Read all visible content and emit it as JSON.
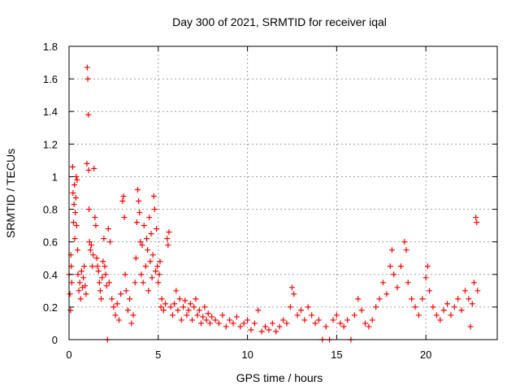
{
  "chart_data": {
    "type": "scatter",
    "title": "Day 300 of 2021, SRMTID for receiver iqal",
    "xlabel": "GPS time / hours",
    "ylabel": "SRMTID / TECUs",
    "xlim": [
      0,
      24
    ],
    "ylim": [
      0,
      1.8
    ],
    "xticks": [
      0,
      5,
      10,
      15,
      20
    ],
    "yticks": [
      0,
      0.2,
      0.4,
      0.6,
      0.8,
      1,
      1.2,
      1.4,
      1.6,
      1.8
    ],
    "xtick_labels": [
      "0",
      "5",
      "10",
      "15",
      "20"
    ],
    "ytick_labels": [
      "0",
      "0.2",
      "0.4",
      "0.6",
      "0.8",
      "1",
      "1.2",
      "1.4",
      "1.6",
      "1.8"
    ],
    "grid": true,
    "marker": "plus",
    "color": "#ff0000",
    "series": [
      {
        "name": "SRMTID",
        "points": [
          [
            0.0,
            0.4
          ],
          [
            0.05,
            0.28
          ],
          [
            0.08,
            0.18
          ],
          [
            0.1,
            0.52
          ],
          [
            0.12,
            0.45
          ],
          [
            0.15,
            0.35
          ],
          [
            0.2,
            1.06
          ],
          [
            0.22,
            0.9
          ],
          [
            0.25,
            0.72
          ],
          [
            0.28,
            0.83
          ],
          [
            0.3,
            0.95
          ],
          [
            0.32,
            0.62
          ],
          [
            0.35,
            0.78
          ],
          [
            0.38,
            0.87
          ],
          [
            0.4,
            1.0
          ],
          [
            0.42,
            0.7
          ],
          [
            0.45,
            0.98
          ],
          [
            0.48,
            0.55
          ],
          [
            0.5,
            0.4
          ],
          [
            0.55,
            0.3
          ],
          [
            0.6,
            0.35
          ],
          [
            0.65,
            0.25
          ],
          [
            0.7,
            0.42
          ],
          [
            0.75,
            0.32
          ],
          [
            0.8,
            0.38
          ],
          [
            0.85,
            0.45
          ],
          [
            0.9,
            0.33
          ],
          [
            0.95,
            0.28
          ],
          [
            1.0,
            1.08
          ],
          [
            1.02,
            1.67
          ],
          [
            1.05,
            1.6
          ],
          [
            1.08,
            1.38
          ],
          [
            1.1,
            1.04
          ],
          [
            1.12,
            0.8
          ],
          [
            1.15,
            0.6
          ],
          [
            1.2,
            0.55
          ],
          [
            1.25,
            0.58
          ],
          [
            1.3,
            0.45
          ],
          [
            1.35,
            0.52
          ],
          [
            1.4,
            1.05
          ],
          [
            1.45,
            0.75
          ],
          [
            1.5,
            0.7
          ],
          [
            1.55,
            0.5
          ],
          [
            1.6,
            0.45
          ],
          [
            1.65,
            0.42
          ],
          [
            1.7,
            0.35
          ],
          [
            1.75,
            0.3
          ],
          [
            1.8,
            0.25
          ],
          [
            1.85,
            0.38
          ],
          [
            1.9,
            0.48
          ],
          [
            1.95,
            0.62
          ],
          [
            2.0,
            0.45
          ],
          [
            2.05,
            0.4
          ],
          [
            2.1,
            0.33
          ],
          [
            2.15,
            0.0
          ],
          [
            2.2,
            0.68
          ],
          [
            2.25,
            0.35
          ],
          [
            2.3,
            0.6
          ],
          [
            2.4,
            0.25
          ],
          [
            2.5,
            0.2
          ],
          [
            2.6,
            0.15
          ],
          [
            2.7,
            0.22
          ],
          [
            2.8,
            0.12
          ],
          [
            2.9,
            0.28
          ],
          [
            3.0,
            0.85
          ],
          [
            3.05,
            0.88
          ],
          [
            3.1,
            0.75
          ],
          [
            3.15,
            0.4
          ],
          [
            3.2,
            0.3
          ],
          [
            3.3,
            0.18
          ],
          [
            3.4,
            0.25
          ],
          [
            3.5,
            0.1
          ],
          [
            3.6,
            0.15
          ],
          [
            3.7,
            0.35
          ],
          [
            3.75,
            0.5
          ],
          [
            3.8,
            0.72
          ],
          [
            3.85,
            0.92
          ],
          [
            3.9,
            0.85
          ],
          [
            3.95,
            0.78
          ],
          [
            4.0,
            0.6
          ],
          [
            4.05,
            0.4
          ],
          [
            4.1,
            0.58
          ],
          [
            4.15,
            0.35
          ],
          [
            4.2,
            0.7
          ],
          [
            4.3,
            0.45
          ],
          [
            4.35,
            0.62
          ],
          [
            4.4,
            0.55
          ],
          [
            4.45,
            0.3
          ],
          [
            4.5,
            0.75
          ],
          [
            4.55,
            0.48
          ],
          [
            4.6,
            0.65
          ],
          [
            4.65,
            0.38
          ],
          [
            4.7,
            0.52
          ],
          [
            4.75,
            0.88
          ],
          [
            4.8,
            0.8
          ],
          [
            4.85,
            0.42
          ],
          [
            4.9,
            0.68
          ],
          [
            4.95,
            0.45
          ],
          [
            5.0,
            0.35
          ],
          [
            5.05,
            0.4
          ],
          [
            5.1,
            0.48
          ],
          [
            5.15,
            0.2
          ],
          [
            5.2,
            0.25
          ],
          [
            5.3,
            0.18
          ],
          [
            5.4,
            0.22
          ],
          [
            5.5,
            0.62
          ],
          [
            5.55,
            0.58
          ],
          [
            5.6,
            0.66
          ],
          [
            5.7,
            0.2
          ],
          [
            5.8,
            0.15
          ],
          [
            5.9,
            0.22
          ],
          [
            6.0,
            0.3
          ],
          [
            6.1,
            0.18
          ],
          [
            6.2,
            0.25
          ],
          [
            6.3,
            0.12
          ],
          [
            6.4,
            0.2
          ],
          [
            6.5,
            0.24
          ],
          [
            6.6,
            0.15
          ],
          [
            6.7,
            0.18
          ],
          [
            6.8,
            0.22
          ],
          [
            6.9,
            0.12
          ],
          [
            7.0,
            0.2
          ],
          [
            7.1,
            0.25
          ],
          [
            7.2,
            0.15
          ],
          [
            7.3,
            0.18
          ],
          [
            7.4,
            0.1
          ],
          [
            7.5,
            0.14
          ],
          [
            7.6,
            0.2
          ],
          [
            7.7,
            0.12
          ],
          [
            7.8,
            0.16
          ],
          [
            7.9,
            0.1
          ],
          [
            8.0,
            0.14
          ],
          [
            8.2,
            0.12
          ],
          [
            8.4,
            0.1
          ],
          [
            8.6,
            0.15
          ],
          [
            8.8,
            0.08
          ],
          [
            9.0,
            0.12
          ],
          [
            9.2,
            0.1
          ],
          [
            9.4,
            0.14
          ],
          [
            9.6,
            0.08
          ],
          [
            9.8,
            0.1
          ],
          [
            10.0,
            0.12
          ],
          [
            10.2,
            0.06
          ],
          [
            10.4,
            0.1
          ],
          [
            10.6,
            0.18
          ],
          [
            10.8,
            0.05
          ],
          [
            11.0,
            0.08
          ],
          [
            11.2,
            0.06
          ],
          [
            11.4,
            0.1
          ],
          [
            11.6,
            0.05
          ],
          [
            11.8,
            0.08
          ],
          [
            12.0,
            0.12
          ],
          [
            12.2,
            0.1
          ],
          [
            12.4,
            0.2
          ],
          [
            12.5,
            0.32
          ],
          [
            12.6,
            0.28
          ],
          [
            12.8,
            0.15
          ],
          [
            13.0,
            0.18
          ],
          [
            13.2,
            0.12
          ],
          [
            13.4,
            0.2
          ],
          [
            13.6,
            0.15
          ],
          [
            13.8,
            0.1
          ],
          [
            14.0,
            0.12
          ],
          [
            14.2,
            0.0
          ],
          [
            14.4,
            0.08
          ],
          [
            14.6,
            0.0
          ],
          [
            14.8,
            0.12
          ],
          [
            15.0,
            0.15
          ],
          [
            15.2,
            0.1
          ],
          [
            15.4,
            0.08
          ],
          [
            15.6,
            0.12
          ],
          [
            15.8,
            0.0
          ],
          [
            16.0,
            0.15
          ],
          [
            16.2,
            0.25
          ],
          [
            16.4,
            0.18
          ],
          [
            16.6,
            0.1
          ],
          [
            16.8,
            0.08
          ],
          [
            17.0,
            0.12
          ],
          [
            17.2,
            0.2
          ],
          [
            17.4,
            0.25
          ],
          [
            17.6,
            0.35
          ],
          [
            17.8,
            0.28
          ],
          [
            18.0,
            0.45
          ],
          [
            18.1,
            0.55
          ],
          [
            18.2,
            0.4
          ],
          [
            18.4,
            0.32
          ],
          [
            18.6,
            0.45
          ],
          [
            18.8,
            0.6
          ],
          [
            18.9,
            0.55
          ],
          [
            19.0,
            0.35
          ],
          [
            19.2,
            0.25
          ],
          [
            19.4,
            0.2
          ],
          [
            19.6,
            0.15
          ],
          [
            19.8,
            0.25
          ],
          [
            20.0,
            0.38
          ],
          [
            20.1,
            0.45
          ],
          [
            20.2,
            0.3
          ],
          [
            20.4,
            0.2
          ],
          [
            20.6,
            0.15
          ],
          [
            20.8,
            0.12
          ],
          [
            21.0,
            0.18
          ],
          [
            21.2,
            0.22
          ],
          [
            21.4,
            0.15
          ],
          [
            21.6,
            0.2
          ],
          [
            21.8,
            0.25
          ],
          [
            22.0,
            0.18
          ],
          [
            22.2,
            0.3
          ],
          [
            22.4,
            0.25
          ],
          [
            22.5,
            0.08
          ],
          [
            22.6,
            0.22
          ],
          [
            22.7,
            0.35
          ],
          [
            22.8,
            0.75
          ],
          [
            22.85,
            0.72
          ],
          [
            22.9,
            0.3
          ]
        ]
      }
    ]
  }
}
